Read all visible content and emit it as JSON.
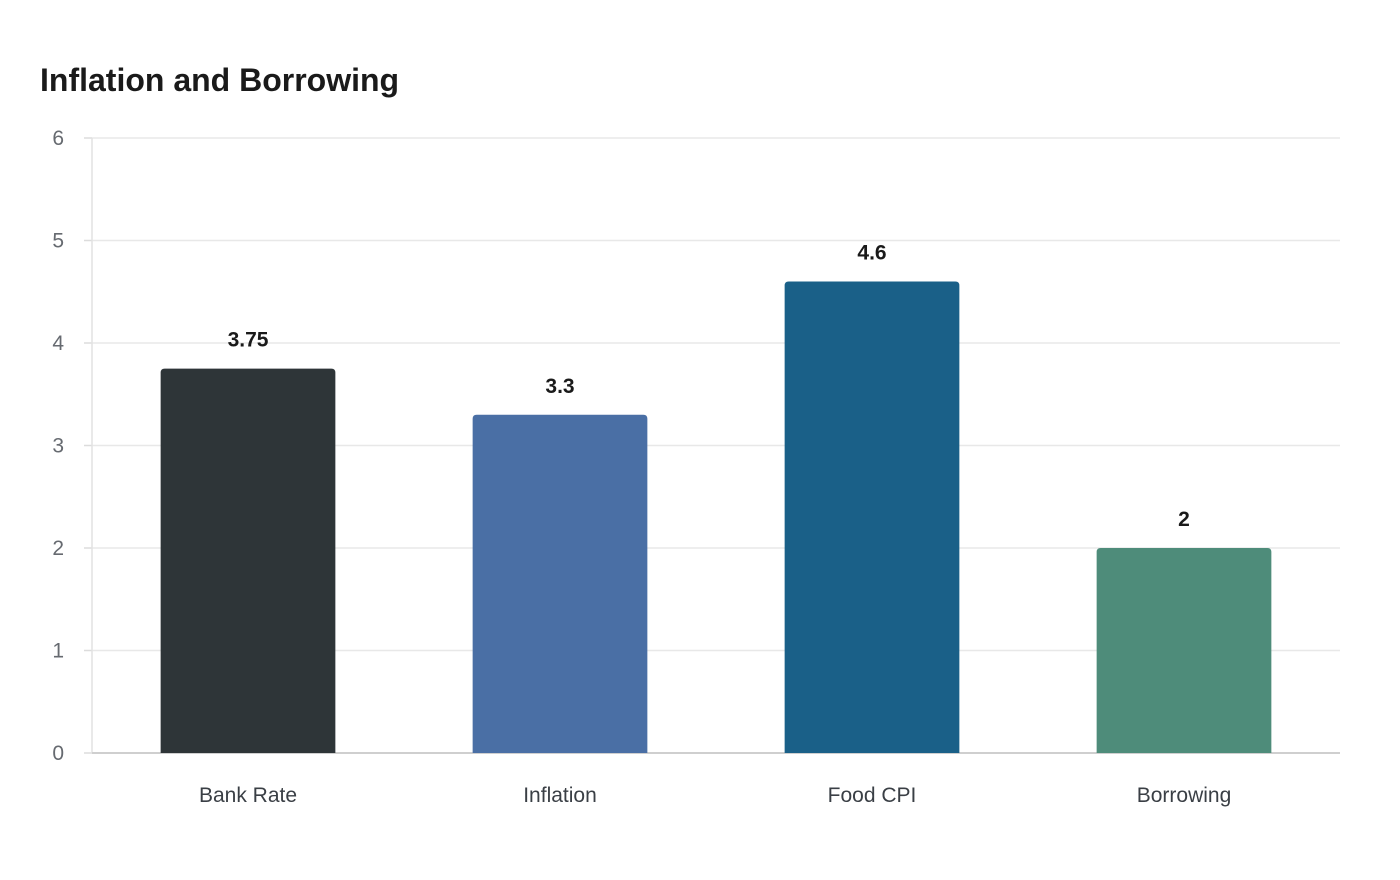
{
  "chart_data": {
    "type": "bar",
    "title": "Inflation and Borrowing",
    "categories": [
      "Bank Rate",
      "Inflation",
      "Food CPI",
      "Borrowing"
    ],
    "values": [
      3.75,
      3.3,
      4.6,
      2
    ],
    "colors": [
      "#2e3538",
      "#4a6fa5",
      "#1a6088",
      "#4e8c7a"
    ],
    "ylim": [
      0,
      6
    ],
    "yticks": [
      0,
      1,
      2,
      3,
      4,
      5,
      6
    ],
    "grid": true,
    "data_labels": true
  }
}
